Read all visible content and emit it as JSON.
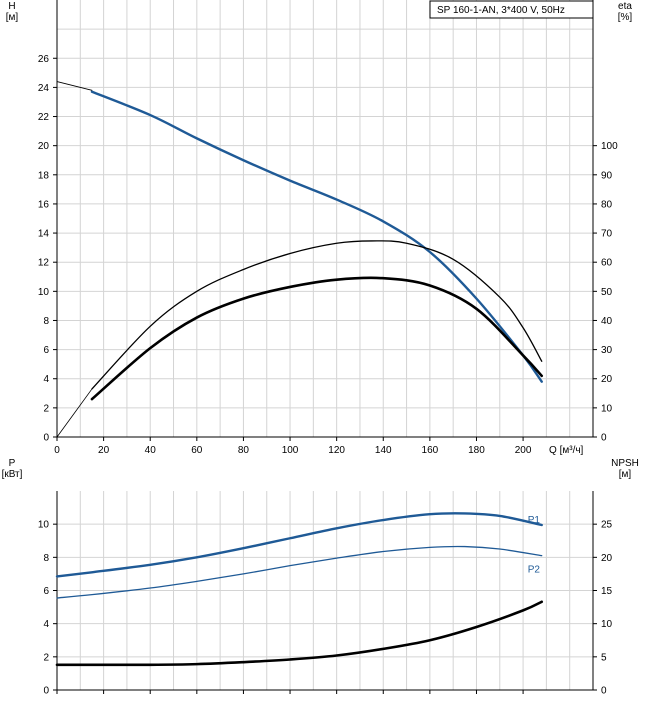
{
  "legend_box": "SP 160-1-AN, 3*400 V, 50Hz",
  "colors": {
    "blue": "#1f5a96",
    "black": "#000000",
    "grid": "#d4d4d4"
  },
  "chart_data": [
    {
      "type": "line",
      "x_axis": {
        "label": "Q [м³/ч]",
        "range": [
          0,
          230
        ],
        "ticks": [
          0,
          20,
          40,
          60,
          80,
          100,
          120,
          140,
          160,
          180,
          200
        ]
      },
      "y_left": {
        "label_top": "H",
        "label_unit": "[м]",
        "range": [
          0,
          30
        ],
        "ticks": [
          0,
          2,
          4,
          6,
          8,
          10,
          12,
          14,
          16,
          18,
          20,
          22,
          24,
          26
        ]
      },
      "y_right": {
        "label_top": "eta",
        "label_unit": "[%]",
        "range": [
          0,
          150
        ],
        "ticks": [
          0,
          10,
          20,
          30,
          40,
          50,
          60,
          70,
          80,
          90,
          100
        ]
      },
      "grid": true,
      "series": [
        {
          "axis": "left",
          "style": "thin-black",
          "points": [
            [
              0,
              24.4
            ],
            [
              15,
              23.8
            ]
          ]
        },
        {
          "axis": "left",
          "style": "blue",
          "points": [
            [
              15,
              23.7
            ],
            [
              40,
              22.1
            ],
            [
              60,
              20.5
            ],
            [
              80,
              19.0
            ],
            [
              100,
              17.6
            ],
            [
              120,
              16.3
            ],
            [
              140,
              14.8
            ],
            [
              160,
              12.7
            ],
            [
              180,
              9.5
            ],
            [
              200,
              5.6
            ],
            [
              208,
              3.8
            ]
          ]
        },
        {
          "axis": "right",
          "style": "thin-black",
          "points": [
            [
              0,
              0
            ],
            [
              15,
              16.5
            ]
          ]
        },
        {
          "axis": "right",
          "style": "black",
          "points": [
            [
              15,
              16.5
            ],
            [
              40,
              38
            ],
            [
              60,
              50
            ],
            [
              80,
              57.5
            ],
            [
              100,
              63
            ],
            [
              120,
              66.5
            ],
            [
              135,
              67.3
            ],
            [
              150,
              66.5
            ],
            [
              170,
              61
            ],
            [
              190,
              48
            ],
            [
              200,
              37.5
            ],
            [
              208,
              26
            ]
          ]
        },
        {
          "axis": "left",
          "style": "thick-black",
          "points": [
            [
              15,
              2.6
            ],
            [
              40,
              6.1
            ],
            [
              60,
              8.2
            ],
            [
              80,
              9.5
            ],
            [
              100,
              10.3
            ],
            [
              120,
              10.8
            ],
            [
              140,
              10.9
            ],
            [
              160,
              10.4
            ],
            [
              180,
              8.8
            ],
            [
              200,
              5.6
            ],
            [
              208,
              4.2
            ]
          ]
        }
      ]
    },
    {
      "type": "line",
      "x_axis": {
        "range": [
          0,
          230
        ]
      },
      "y_left": {
        "label_top": "P",
        "label_unit": "[кВт]",
        "range": [
          0,
          12
        ],
        "ticks": [
          0,
          2,
          4,
          6,
          8,
          10
        ]
      },
      "y_right": {
        "label_top": "NPSH",
        "label_unit": "[м]",
        "range": [
          0,
          30
        ],
        "ticks": [
          0,
          5,
          10,
          15,
          20,
          25
        ]
      },
      "grid": true,
      "series": [
        {
          "name": "P1",
          "axis": "left",
          "style": "blue",
          "points": [
            [
              0,
              6.85
            ],
            [
              15,
              7.1
            ],
            [
              40,
              7.55
            ],
            [
              60,
              8.0
            ],
            [
              80,
              8.55
            ],
            [
              100,
              9.15
            ],
            [
              120,
              9.75
            ],
            [
              140,
              10.25
            ],
            [
              160,
              10.6
            ],
            [
              175,
              10.65
            ],
            [
              190,
              10.5
            ],
            [
              208,
              9.95
            ]
          ]
        },
        {
          "name": "P2",
          "axis": "left",
          "style": "blue-thin",
          "points": [
            [
              0,
              5.55
            ],
            [
              15,
              5.75
            ],
            [
              40,
              6.15
            ],
            [
              60,
              6.55
            ],
            [
              80,
              7.0
            ],
            [
              100,
              7.5
            ],
            [
              120,
              7.95
            ],
            [
              140,
              8.35
            ],
            [
              160,
              8.6
            ],
            [
              175,
              8.65
            ],
            [
              190,
              8.5
            ],
            [
              208,
              8.1
            ]
          ]
        },
        {
          "axis": "right",
          "style": "thick-black",
          "points": [
            [
              0,
              3.8
            ],
            [
              15,
              3.8
            ],
            [
              40,
              3.8
            ],
            [
              60,
              3.9
            ],
            [
              80,
              4.2
            ],
            [
              100,
              4.6
            ],
            [
              120,
              5.2
            ],
            [
              140,
              6.2
            ],
            [
              160,
              7.5
            ],
            [
              180,
              9.5
            ],
            [
              200,
              12.0
            ],
            [
              208,
              13.3
            ]
          ]
        }
      ]
    }
  ]
}
